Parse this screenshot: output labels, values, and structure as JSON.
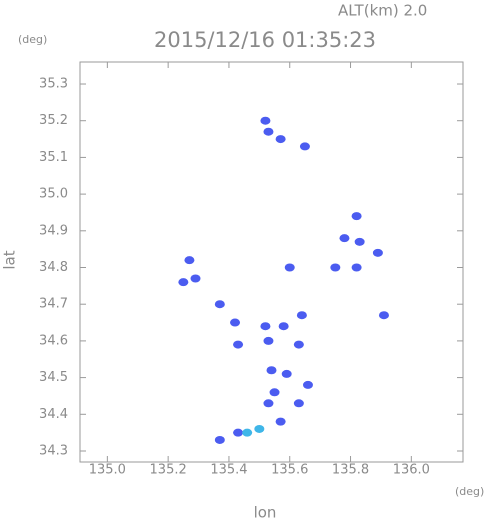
{
  "chart_data": {
    "type": "scatter",
    "title": "2015/12/16 01:35:23",
    "subtitle": "ALT(km) 2.0",
    "y_unit": "(deg)",
    "x_unit": "(deg)",
    "x_label": "lon",
    "y_label": "lat",
    "xlim": [
      134.91,
      136.17
    ],
    "ylim": [
      34.27,
      35.36
    ],
    "xticks": [
      {
        "value": 135.0,
        "label": "135.0"
      },
      135.2,
      135.4,
      135.6,
      135.8,
      {
        "value": 136.0,
        "label": "136.0"
      }
    ],
    "yticks": [
      34.3,
      34.4,
      34.5,
      34.6,
      34.7,
      34.8,
      34.9,
      {
        "value": 35.0,
        "label": "35.0"
      },
      35.1,
      35.2,
      35.3
    ],
    "series": [
      {
        "color": "#4b5cf0",
        "x": [
          135.52,
          135.53,
          135.57,
          135.65,
          135.82,
          135.78,
          135.83,
          135.89,
          135.27,
          135.6,
          135.75,
          135.82,
          135.25,
          135.29,
          135.37,
          135.91,
          135.42,
          135.52,
          135.58,
          135.64,
          135.43,
          135.53,
          135.63,
          135.54,
          135.59,
          135.66,
          135.55,
          135.63,
          135.53,
          135.57,
          135.43,
          135.37
        ],
        "y": [
          35.2,
          35.17,
          35.15,
          35.13,
          34.94,
          34.88,
          34.87,
          34.84,
          34.82,
          34.8,
          34.8,
          34.8,
          34.76,
          34.77,
          34.7,
          34.67,
          34.65,
          34.64,
          34.64,
          34.67,
          34.59,
          34.6,
          34.59,
          34.52,
          34.51,
          34.48,
          34.46,
          34.43,
          34.43,
          34.38,
          34.35,
          34.33
        ]
      },
      {
        "color": "#3fb6e8",
        "x": [
          135.46,
          135.5
        ],
        "y": [
          34.35,
          34.36
        ]
      }
    ]
  }
}
